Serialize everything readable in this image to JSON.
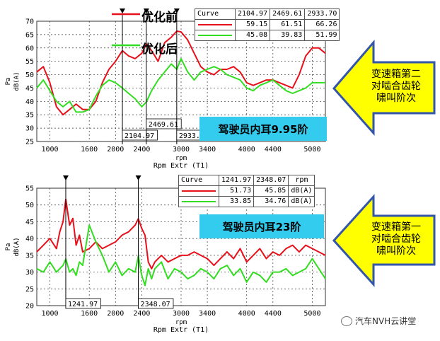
{
  "colors": {
    "red": "#e8101a",
    "green": "#33dd22",
    "cyan": "#33ccee",
    "arrow_fill": "#ffff00",
    "arrow_stroke": "#3355aa"
  },
  "chart_data": [
    {
      "type": "line",
      "xlabel": "rpm",
      "xsublabel": "Rpm Extr (T1)",
      "ylabel_top": "Pa",
      "ylabel": "dB(A)",
      "xlim": [
        800,
        5200
      ],
      "ylim": [
        25,
        70
      ],
      "xticks": [
        1000,
        1600,
        2000,
        2400,
        3000,
        3400,
        4000,
        4400,
        5000
      ],
      "yticks": [
        25,
        30,
        35,
        40,
        45,
        50,
        55,
        60,
        65,
        70
      ],
      "legend_header": [
        "Curve",
        "2104.97",
        "2469.61",
        "2933.70"
      ],
      "legend_rows": [
        {
          "color": "#e8101a",
          "values": [
            "59.15",
            "61.51",
            "66.26"
          ]
        },
        {
          "color": "#33dd22",
          "values": [
            "45.08",
            "39.83",
            "51.99"
          ]
        }
      ],
      "series_legend_labels": [
        "优化前",
        "优化后"
      ],
      "cursor_labels": [
        "2104.97",
        "2469.61",
        "2933."
      ],
      "cursors": [
        2104.97,
        2469.61,
        2933.7
      ],
      "annotation": "驾驶员内耳9.95阶",
      "series": [
        {
          "color": "#e8101a",
          "x": [
            800,
            900,
            1000,
            1100,
            1200,
            1300,
            1400,
            1500,
            1600,
            1700,
            1800,
            1900,
            2000,
            2105,
            2200,
            2300,
            2400,
            2470,
            2550,
            2650,
            2750,
            2850,
            2934,
            3000,
            3100,
            3200,
            3300,
            3400,
            3500,
            3600,
            3700,
            3800,
            3900,
            4000,
            4100,
            4200,
            4300,
            4400,
            4500,
            4600,
            4700,
            4800,
            4900,
            5000,
            5100,
            5200
          ],
          "values": [
            51,
            53,
            47,
            38,
            35,
            37,
            39,
            37,
            37,
            40,
            47,
            52,
            55,
            59,
            57,
            56,
            58,
            61.5,
            59,
            55,
            62,
            64,
            66.3,
            66,
            63,
            58,
            53,
            51,
            50,
            52,
            52,
            53,
            51,
            47,
            46,
            47,
            48,
            48,
            47,
            46,
            45,
            50,
            57,
            60,
            60,
            58
          ]
        },
        {
          "color": "#33dd22",
          "x": [
            800,
            900,
            1000,
            1100,
            1200,
            1300,
            1400,
            1500,
            1600,
            1700,
            1800,
            1900,
            2000,
            2105,
            2200,
            2300,
            2400,
            2470,
            2550,
            2650,
            2750,
            2850,
            2934,
            3000,
            3100,
            3200,
            3300,
            3400,
            3500,
            3600,
            3700,
            3800,
            3900,
            4000,
            4100,
            4200,
            4300,
            4400,
            4500,
            4600,
            4700,
            4800,
            4900,
            5000,
            5100,
            5200
          ],
          "values": [
            45,
            48,
            44,
            40,
            38,
            40,
            36,
            36,
            37,
            42,
            46,
            48,
            47,
            45,
            43,
            41,
            38,
            39.8,
            44,
            48,
            51,
            54,
            52,
            56,
            51,
            48,
            51,
            52,
            53,
            52,
            50,
            49,
            48,
            45,
            44,
            46,
            47,
            48,
            46,
            44,
            43,
            44,
            45,
            47,
            47,
            47
          ]
        }
      ]
    },
    {
      "type": "line",
      "xlabel": "rpm",
      "xsublabel": "Rpm Extr (T1)",
      "ylabel_top": "Pa",
      "ylabel": "dB(A)",
      "xlim": [
        800,
        5200
      ],
      "ylim": [
        20,
        55
      ],
      "xticks": [
        1000,
        1600,
        2000,
        2400,
        3000,
        3400,
        4000,
        4400,
        5000
      ],
      "yticks": [
        20,
        25,
        30,
        35,
        40,
        45,
        50,
        55
      ],
      "legend_header": [
        "Curve",
        "1241.97",
        "2348.07",
        "rpm"
      ],
      "legend_rows": [
        {
          "color": "#e8101a",
          "values": [
            "51.73",
            "45.85",
            "dB(A)"
          ]
        },
        {
          "color": "#33dd22",
          "values": [
            "33.85",
            "34.76",
            "dB(A)"
          ]
        }
      ],
      "cursor_labels": [
        "1241.97",
        "2348.07"
      ],
      "cursors": [
        1241.97,
        2348.07
      ],
      "annotation": "驾驶员内耳23阶",
      "series": [
        {
          "color": "#e8101a",
          "x": [
            800,
            900,
            1000,
            1100,
            1150,
            1200,
            1242,
            1300,
            1350,
            1400,
            1450,
            1500,
            1600,
            1700,
            1800,
            1900,
            2000,
            2100,
            2200,
            2300,
            2348,
            2400,
            2450,
            2500,
            2550,
            2600,
            2700,
            2800,
            2900,
            3000,
            3100,
            3200,
            3300,
            3400,
            3500,
            3600,
            3700,
            3800,
            3900,
            4000,
            4100,
            4200,
            4300,
            4400,
            4500,
            4600,
            4700,
            4800,
            4900,
            5000,
            5100,
            5200
          ],
          "values": [
            36,
            38,
            40,
            37,
            42,
            45,
            51.7,
            44,
            46,
            38,
            41,
            36,
            37,
            39,
            37,
            38,
            39,
            41,
            42,
            44,
            45.9,
            43,
            41,
            33,
            31,
            33,
            35,
            33,
            34,
            35,
            35,
            36,
            35,
            34,
            32,
            34,
            36,
            34,
            37,
            33,
            35,
            37,
            34,
            36,
            35,
            37,
            38,
            36,
            38,
            37,
            36,
            35
          ]
        },
        {
          "color": "#33dd22",
          "x": [
            800,
            900,
            1000,
            1100,
            1150,
            1200,
            1242,
            1300,
            1350,
            1400,
            1450,
            1500,
            1600,
            1700,
            1800,
            1900,
            2000,
            2100,
            2200,
            2300,
            2348,
            2400,
            2450,
            2500,
            2550,
            2600,
            2700,
            2800,
            2900,
            3000,
            3100,
            3200,
            3300,
            3400,
            3500,
            3600,
            3700,
            3800,
            3900,
            4000,
            4100,
            4200,
            4300,
            4400,
            4500,
            4600,
            4700,
            4800,
            4900,
            5000,
            5100,
            5200
          ],
          "values": [
            31,
            30,
            33,
            30,
            31,
            32,
            33.9,
            30,
            31,
            29,
            33,
            32,
            44,
            39,
            35,
            30,
            33,
            29,
            31,
            30,
            34.8,
            29,
            26,
            31,
            28,
            31,
            33,
            28,
            31,
            30,
            28,
            29,
            31,
            30,
            28,
            31,
            32,
            29,
            31,
            27,
            30,
            29,
            27,
            30,
            30,
            31,
            29,
            30,
            31,
            34,
            31,
            28
          ]
        }
      ]
    }
  ],
  "legend_big": {
    "before": "优化前",
    "after": "优化后"
  },
  "arrows": [
    {
      "label_lines": [
        "变速箱第二",
        "对啮合齿轮",
        "啸叫阶次"
      ]
    },
    {
      "label_lines": [
        "变速箱第一",
        "对啮合齿轮",
        "啸叫阶次"
      ]
    }
  ],
  "watermark": "汽车NVH云讲堂"
}
